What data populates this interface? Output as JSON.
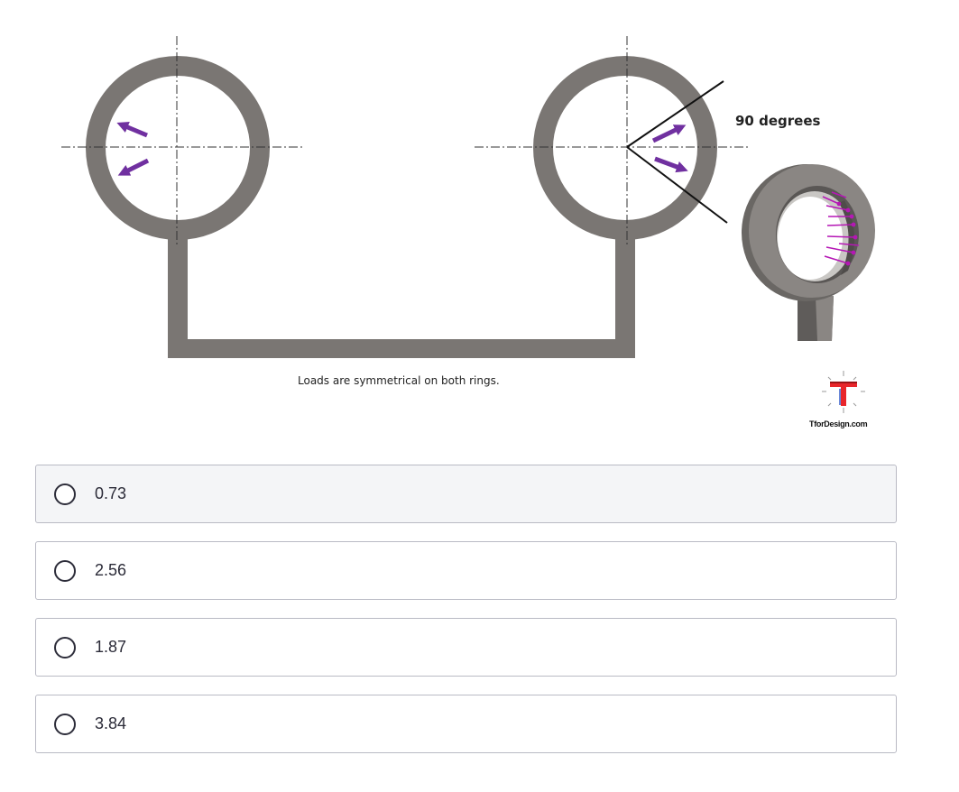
{
  "figure": {
    "caption": "Loads are symmetrical on both rings.",
    "angle_label": "90 degrees",
    "logo_text": "TforDesign.com",
    "part_color": "#7a7673",
    "arrow_color": "#7030a0",
    "logo_color": "#e8262b"
  },
  "options": [
    {
      "label": "0.73",
      "selected": false,
      "highlighted": true
    },
    {
      "label": "2.56",
      "selected": false,
      "highlighted": false
    },
    {
      "label": "1.87",
      "selected": false,
      "highlighted": false
    },
    {
      "label": "3.84",
      "selected": false,
      "highlighted": false
    }
  ]
}
